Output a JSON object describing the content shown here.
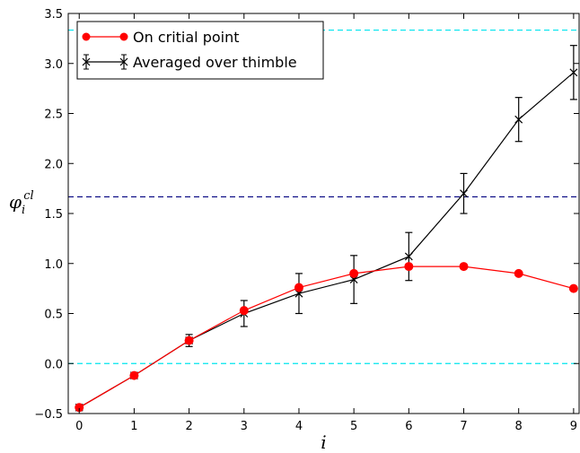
{
  "chart_data": {
    "type": "line",
    "xlabel": "i",
    "ylabel": "φ",
    "ylabel_sub": "i",
    "ylabel_sup": "cl",
    "xlim": [
      -0.2,
      9.1
    ],
    "ylim": [
      -0.5,
      3.5
    ],
    "xticks": [
      "0",
      "1",
      "2",
      "3",
      "4",
      "5",
      "6",
      "7",
      "8",
      "9"
    ],
    "yticks": [
      "−0.5",
      "0.0",
      "0.5",
      "1.0",
      "1.5",
      "2.0",
      "2.5",
      "3.0",
      "3.5"
    ],
    "grid": false,
    "legend_position": "top-left",
    "series": [
      {
        "name": "On critial point",
        "color": "#ff0000",
        "marker": "circle",
        "x": [
          0,
          1,
          2,
          3,
          4,
          5,
          6,
          7,
          8,
          9
        ],
        "y": [
          -0.44,
          -0.12,
          0.23,
          0.53,
          0.76,
          0.9,
          0.97,
          0.97,
          0.9,
          0.75
        ]
      },
      {
        "name": "Averaged over thimble",
        "color": "#000000",
        "marker": "x",
        "x": [
          0,
          1,
          2,
          3,
          4,
          5,
          6,
          7,
          8,
          9
        ],
        "y": [
          -0.44,
          -0.12,
          0.23,
          0.5,
          0.7,
          0.84,
          1.07,
          1.7,
          2.44,
          2.91
        ],
        "yerr": [
          0.02,
          0.02,
          0.06,
          0.13,
          0.2,
          0.24,
          0.24,
          0.2,
          0.22,
          0.27
        ]
      }
    ],
    "hlines": [
      {
        "y": 0.0,
        "color": "#00e5ee",
        "style": "dashed"
      },
      {
        "y": 1.6667,
        "color": "#000080",
        "style": "dashed"
      },
      {
        "y": 3.3333,
        "color": "#00e5ee",
        "style": "dashed"
      }
    ]
  }
}
